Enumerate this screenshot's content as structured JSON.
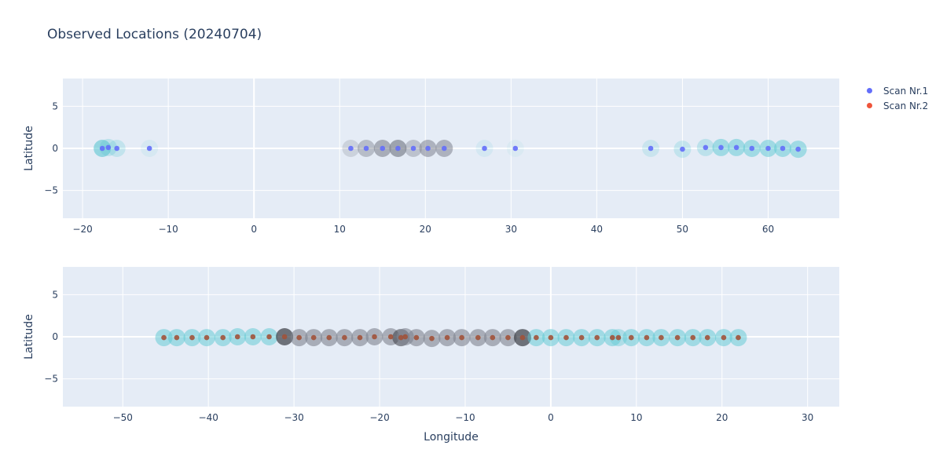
{
  "chart_data": {
    "type": "scatter",
    "title": "Observed Locations (20240704)",
    "legend_position": "top-right",
    "legend": [
      {
        "name": "Scan Nr.1",
        "color": "#636efa"
      },
      {
        "name": "Scan Nr.2",
        "color": "#ef553b"
      }
    ],
    "halo_colors": {
      "cyan": "#5cc7d2",
      "gray": "#7f8490",
      "dark": "#3a3d44"
    },
    "subplots": [
      {
        "series": "Scan Nr.1",
        "xlabel": "",
        "ylabel": "Latitude",
        "xlim": [
          -22.3,
          68.3
        ],
        "ylim": [
          -8.3,
          8.3
        ],
        "xticks": [
          -20,
          -10,
          0,
          10,
          20,
          30,
          40,
          50,
          60
        ],
        "yticks": [
          -5,
          0,
          5
        ],
        "points": [
          {
            "lon": -17.7,
            "lat": 0,
            "halo": "cyan",
            "alpha": 0.6
          },
          {
            "lon": -17.0,
            "lat": 0.1,
            "halo": "cyan",
            "alpha": 0.3
          },
          {
            "lon": -16.0,
            "lat": 0,
            "halo": "cyan",
            "alpha": 0.25
          },
          {
            "lon": -12.2,
            "lat": 0,
            "halo": "cyan",
            "alpha": 0.1
          },
          {
            "lon": 11.3,
            "lat": 0,
            "halo": "gray",
            "alpha": 0.25
          },
          {
            "lon": 13.1,
            "lat": 0,
            "halo": "gray",
            "alpha": 0.45
          },
          {
            "lon": 15.0,
            "lat": 0,
            "halo": "gray",
            "alpha": 0.6
          },
          {
            "lon": 16.8,
            "lat": 0,
            "halo": "gray",
            "alpha": 0.7
          },
          {
            "lon": 18.6,
            "lat": 0,
            "halo": "gray",
            "alpha": 0.4
          },
          {
            "lon": 20.3,
            "lat": 0,
            "halo": "gray",
            "alpha": 0.55
          },
          {
            "lon": 22.2,
            "lat": 0,
            "halo": "gray",
            "alpha": 0.55
          },
          {
            "lon": 26.9,
            "lat": 0,
            "halo": "cyan",
            "alpha": 0.12
          },
          {
            "lon": 30.5,
            "lat": 0,
            "halo": "cyan",
            "alpha": 0.08
          },
          {
            "lon": 46.3,
            "lat": 0,
            "halo": "cyan",
            "alpha": 0.2
          },
          {
            "lon": 50.0,
            "lat": -0.1,
            "halo": "cyan",
            "alpha": 0.25
          },
          {
            "lon": 52.7,
            "lat": 0.1,
            "halo": "cyan",
            "alpha": 0.3
          },
          {
            "lon": 54.5,
            "lat": 0.1,
            "halo": "cyan",
            "alpha": 0.5
          },
          {
            "lon": 56.3,
            "lat": 0.1,
            "halo": "cyan",
            "alpha": 0.5
          },
          {
            "lon": 58.1,
            "lat": 0,
            "halo": "cyan",
            "alpha": 0.5
          },
          {
            "lon": 60.0,
            "lat": 0,
            "halo": "cyan",
            "alpha": 0.5
          },
          {
            "lon": 61.7,
            "lat": 0,
            "halo": "cyan",
            "alpha": 0.5
          },
          {
            "lon": 63.5,
            "lat": -0.1,
            "halo": "cyan",
            "alpha": 0.5
          }
        ]
      },
      {
        "series": "Scan Nr.2",
        "xlabel": "Longitude",
        "ylabel": "Latitude",
        "xlim": [
          -57.0,
          33.7
        ],
        "ylim": [
          -8.3,
          8.3
        ],
        "xticks": [
          -50,
          -40,
          -30,
          -20,
          -10,
          0,
          10,
          20,
          30
        ],
        "yticks": [
          -5,
          0,
          5
        ],
        "points": [
          {
            "lon": -45.2,
            "lat": -0.1,
            "halo": "cyan",
            "alpha": 0.5
          },
          {
            "lon": -43.7,
            "lat": -0.1,
            "halo": "cyan",
            "alpha": 0.5
          },
          {
            "lon": -41.9,
            "lat": -0.1,
            "halo": "cyan",
            "alpha": 0.5
          },
          {
            "lon": -40.2,
            "lat": -0.1,
            "halo": "cyan",
            "alpha": 0.5
          },
          {
            "lon": -38.3,
            "lat": -0.1,
            "halo": "cyan",
            "alpha": 0.5
          },
          {
            "lon": -36.6,
            "lat": 0,
            "halo": "cyan",
            "alpha": 0.5
          },
          {
            "lon": -34.8,
            "lat": 0,
            "halo": "cyan",
            "alpha": 0.5
          },
          {
            "lon": -32.9,
            "lat": 0,
            "halo": "cyan",
            "alpha": 0.5
          },
          {
            "lon": -31.1,
            "lat": 0,
            "halo": "dark",
            "alpha": 0.7
          },
          {
            "lon": -29.4,
            "lat": -0.1,
            "halo": "gray",
            "alpha": 0.6
          },
          {
            "lon": -27.7,
            "lat": -0.1,
            "halo": "gray",
            "alpha": 0.6
          },
          {
            "lon": -25.9,
            "lat": -0.1,
            "halo": "gray",
            "alpha": 0.6
          },
          {
            "lon": -24.1,
            "lat": -0.1,
            "halo": "gray",
            "alpha": 0.6
          },
          {
            "lon": -22.3,
            "lat": -0.1,
            "halo": "gray",
            "alpha": 0.6
          },
          {
            "lon": -20.6,
            "lat": 0,
            "halo": "gray",
            "alpha": 0.6
          },
          {
            "lon": -18.7,
            "lat": 0,
            "halo": "gray",
            "alpha": 0.6
          },
          {
            "lon": -17.5,
            "lat": -0.1,
            "halo": "dark",
            "alpha": 0.55
          },
          {
            "lon": -17.0,
            "lat": 0,
            "halo": "gray",
            "alpha": 0.6
          },
          {
            "lon": -15.7,
            "lat": -0.1,
            "halo": "gray",
            "alpha": 0.6
          },
          {
            "lon": -13.9,
            "lat": -0.2,
            "halo": "gray",
            "alpha": 0.6
          },
          {
            "lon": -12.1,
            "lat": -0.1,
            "halo": "gray",
            "alpha": 0.6
          },
          {
            "lon": -10.4,
            "lat": -0.1,
            "halo": "gray",
            "alpha": 0.6
          },
          {
            "lon": -8.5,
            "lat": -0.1,
            "halo": "gray",
            "alpha": 0.6
          },
          {
            "lon": -6.8,
            "lat": -0.1,
            "halo": "gray",
            "alpha": 0.6
          },
          {
            "lon": -5.0,
            "lat": -0.1,
            "halo": "gray",
            "alpha": 0.6
          },
          {
            "lon": -3.3,
            "lat": -0.1,
            "halo": "dark",
            "alpha": 0.7
          },
          {
            "lon": -1.7,
            "lat": -0.1,
            "halo": "cyan",
            "alpha": 0.5
          },
          {
            "lon": 0.0,
            "lat": -0.1,
            "halo": "cyan",
            "alpha": 0.5
          },
          {
            "lon": 1.8,
            "lat": -0.1,
            "halo": "cyan",
            "alpha": 0.5
          },
          {
            "lon": 3.6,
            "lat": -0.1,
            "halo": "cyan",
            "alpha": 0.5
          },
          {
            "lon": 5.4,
            "lat": -0.1,
            "halo": "cyan",
            "alpha": 0.5
          },
          {
            "lon": 7.2,
            "lat": -0.1,
            "halo": "cyan",
            "alpha": 0.5
          },
          {
            "lon": 7.9,
            "lat": -0.1,
            "halo": "cyan",
            "alpha": 0.4
          },
          {
            "lon": 9.4,
            "lat": -0.1,
            "halo": "cyan",
            "alpha": 0.5
          },
          {
            "lon": 11.2,
            "lat": -0.1,
            "halo": "cyan",
            "alpha": 0.5
          },
          {
            "lon": 12.9,
            "lat": -0.1,
            "halo": "cyan",
            "alpha": 0.5
          },
          {
            "lon": 14.8,
            "lat": -0.1,
            "halo": "cyan",
            "alpha": 0.5
          },
          {
            "lon": 16.6,
            "lat": -0.1,
            "halo": "cyan",
            "alpha": 0.5
          },
          {
            "lon": 18.3,
            "lat": -0.1,
            "halo": "cyan",
            "alpha": 0.5
          },
          {
            "lon": 20.2,
            "lat": -0.1,
            "halo": "cyan",
            "alpha": 0.5
          },
          {
            "lon": 21.9,
            "lat": -0.1,
            "halo": "cyan",
            "alpha": 0.5
          }
        ]
      }
    ]
  }
}
